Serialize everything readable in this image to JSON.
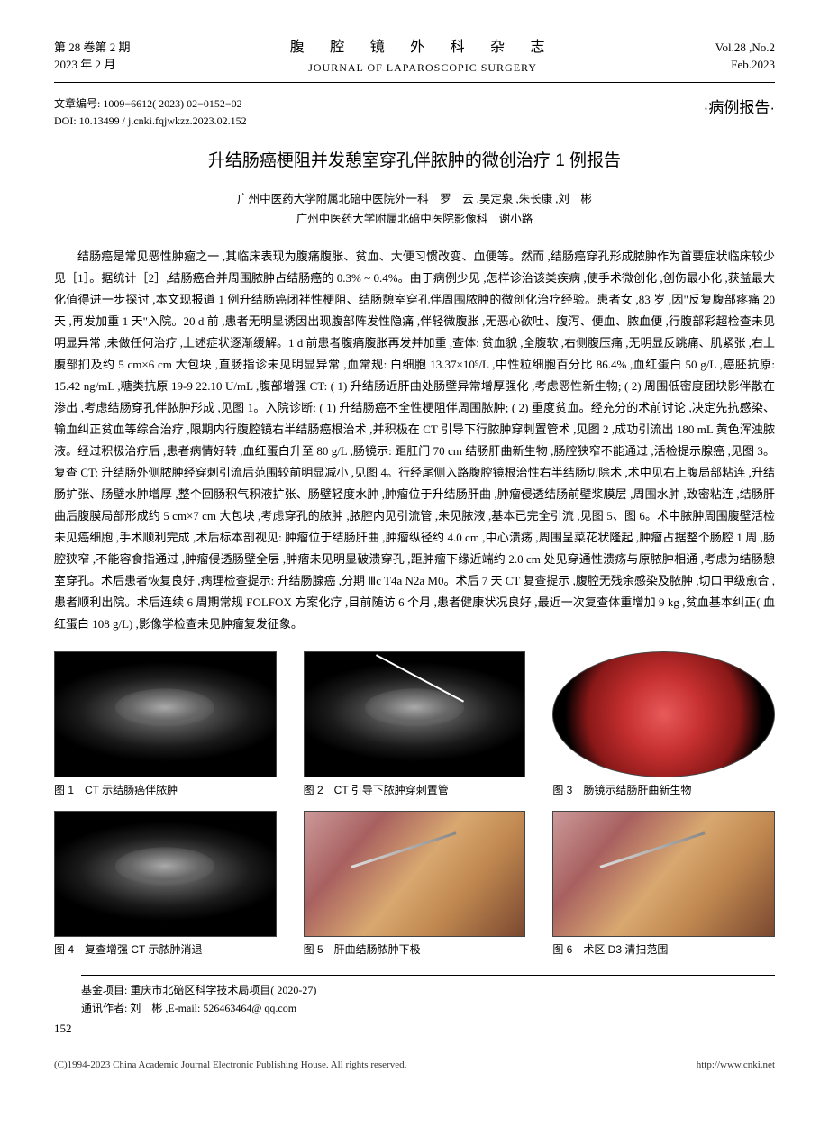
{
  "header": {
    "vol_issue_cn": "第 28 卷第 2 期",
    "date_cn": "2023 年 2 月",
    "journal_cn": "腹 腔 镜 外 科 杂 志",
    "journal_en": "JOURNAL OF LAPAROSCOPIC SURGERY",
    "vol_issue_en": "Vol.28 ,No.2",
    "date_en": "Feb.2023"
  },
  "meta": {
    "article_id": "文章编号: 1009−6612( 2023) 02−0152−02",
    "doi": "DOI: 10.13499 / j.cnki.fqjwkzz.2023.02.152",
    "section_type": "·病例报告·"
  },
  "title": "升结肠癌梗阻并发憩室穿孔伴脓肿的微创治疗 1 例报告",
  "authors": {
    "line1": "广州中医药大学附属北碚中医院外一科　罗　云 ,吴定泉 ,朱长康 ,刘　彬",
    "line2": "广州中医药大学附属北碚中医院影像科　谢小路"
  },
  "body": "结肠癌是常见恶性肿瘤之一 ,其临床表现为腹痛腹胀、贫血、大便习惯改变、血便等。然而 ,结肠癌穿孔形成脓肿作为首要症状临床较少见［1］。据统计［2］,结肠癌合并周围脓肿占结肠癌的 0.3% ~ 0.4%。由于病例少见 ,怎样诊治该类疾病 ,使手术微创化 ,创伤最小化 ,获益最大化值得进一步探讨 ,本文现报道 1 例升结肠癌闭袢性梗阻、结肠憩室穿孔伴周围脓肿的微创化治疗经验。患者女 ,83 岁 ,因\"反复腹部疼痛 20 天 ,再发加重 1 天\"入院。20 d 前 ,患者无明显诱因出现腹部阵发性隐痛 ,伴轻微腹胀 ,无恶心欲吐、腹泻、便血、脓血便 ,行腹部彩超检查未见明显异常 ,未做任何治疗 ,上述症状逐渐缓解。1 d 前患者腹痛腹胀再发并加重 ,查体: 贫血貌 ,全腹软 ,右侧腹压痛 ,无明显反跳痛、肌紧张 ,右上腹部扪及约 5 cm×6 cm 大包块 ,直肠指诊未见明显异常 ,血常规: 白细胞 13.37×10⁹/L ,中性粒细胞百分比 86.4% ,血红蛋白 50 g/L ,癌胚抗原: 15.42 ng/mL ,糖类抗原 19-9 22.10 U/mL ,腹部增强 CT: ( 1) 升结肠近肝曲处肠壁异常增厚强化 ,考虑恶性新生物; ( 2) 周围低密度团块影伴散在渗出 ,考虑结肠穿孔伴脓肿形成 ,见图 1。入院诊断: ( 1) 升结肠癌不全性梗阻伴周围脓肿; ( 2) 重度贫血。经充分的术前讨论 ,决定先抗感染、输血纠正贫血等综合治疗 ,限期内行腹腔镜右半结肠癌根治术 ,并积极在 CT 引导下行脓肿穿刺置管术 ,见图 2 ,成功引流出 180 mL 黄色浑浊脓液。经过积极治疗后 ,患者病情好转 ,血红蛋白升至 80 g/L ,肠镜示: 距肛门 70 cm 结肠肝曲新生物 ,肠腔狭窄不能通过 ,活检提示腺癌 ,见图 3。复查 CT: 升结肠外侧脓肿经穿刺引流后范围较前明显减小 ,见图 4。行经尾侧入路腹腔镜根治性右半结肠切除术 ,术中见右上腹局部粘连 ,升结肠扩张、肠壁水肿增厚 ,整个回肠积气积液扩张、肠壁轻度水肿 ,肿瘤位于升结肠肝曲 ,肿瘤侵透结肠前壁浆膜层 ,周围水肿 ,致密粘连 ,结肠肝曲后腹膜局部形成约 5 cm×7 cm 大包块 ,考虑穿孔的脓肿 ,脓腔内见引流管 ,未见脓液 ,基本已完全引流 ,见图 5、图 6。术中脓肿周围腹壁活检未见癌细胞 ,手术顺利完成 ,术后标本剖视见: 肿瘤位于结肠肝曲 ,肿瘤纵径约 4.0 cm ,中心溃疡 ,周围呈菜花状隆起 ,肿瘤占据整个肠腔 1 周 ,肠腔狭窄 ,不能容食指通过 ,肿瘤侵透肠壁全层 ,肿瘤未见明显破溃穿孔 ,距肿瘤下缘近端约 2.0 cm 处见穿通性溃疡与原脓肿相通 ,考虑为结肠憩室穿孔。术后患者恢复良好 ,病理检查提示: 升结肠腺癌 ,分期 Ⅲc T4a N2a M0。术后 7 天 CT 复查提示 ,腹腔无残余感染及脓肿 ,切口甲级愈合 ,患者顺利出院。术后连续 6 周期常规 FOLFOX 方案化疗 ,目前随访 6 个月 ,患者健康状况良好 ,最近一次复查体重增加 9 kg ,贫血基本纠正( 血红蛋白 108 g/L) ,影像学检查未见肿瘤复发征象。",
  "figures": [
    {
      "caption": "图 1　CT 示结肠癌伴脓肿",
      "type": "ct"
    },
    {
      "caption": "图 2　CT 引导下脓肿穿刺置管",
      "type": "ct-needle"
    },
    {
      "caption": "图 3　肠镜示结肠肝曲新生物",
      "type": "scope"
    },
    {
      "caption": "图 4　复查增强 CT 示脓肿消退",
      "type": "ct"
    },
    {
      "caption": "图 5　肝曲结肠脓肿下极",
      "type": "surgery"
    },
    {
      "caption": "图 6　术区 D3 清扫范围",
      "type": "surgery"
    }
  ],
  "footer": {
    "fund": "基金项目: 重庆市北碚区科学技术局项目( 2020-27)",
    "corresponding": "通讯作者: 刘　彬 ,E-mail: 526463464@ qq.com",
    "page": "152"
  },
  "copyright": {
    "left": "(C)1994-2023 China Academic Journal Electronic Publishing House. All rights reserved.",
    "right": "http://www.cnki.net"
  }
}
